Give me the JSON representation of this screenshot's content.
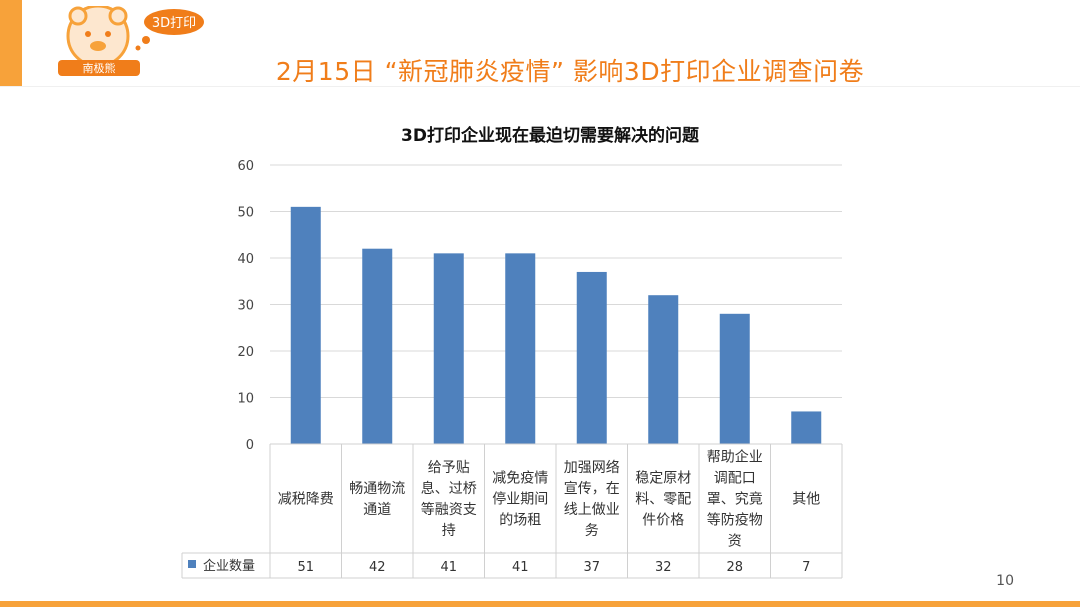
{
  "header": {
    "title": "2月15日 “新冠肺炎疫情” 影响3D打印企业调查问卷",
    "logo_bear_text": "南极熊",
    "logo_bubble_text": "3D打印"
  },
  "page_number": "10",
  "colors": {
    "accent": "#f7a23a",
    "title": "#f07d1a",
    "bar": "#4f81bd"
  },
  "chart_data": {
    "type": "bar",
    "title": "3D打印企业现在最迫切需要解决的问题",
    "categories": [
      [
        "减税降费"
      ],
      [
        "畅通物流",
        "通道"
      ],
      [
        "给予贴",
        "息、过桥",
        "等融资支",
        "持"
      ],
      [
        "减免疫情",
        "停业期间",
        "的场租"
      ],
      [
        "加强网络",
        "宣传，在",
        "线上做业",
        "务"
      ],
      [
        "稳定原材",
        "料、零配",
        "件价格"
      ],
      [
        "帮助企业",
        "调配口",
        "罩、究竟",
        "等防疫物",
        "资"
      ],
      [
        "其他"
      ]
    ],
    "series": [
      {
        "name": "企业数量",
        "values": [
          51,
          42,
          41,
          41,
          37,
          32,
          28,
          7
        ]
      }
    ],
    "ylim": [
      0,
      60
    ],
    "yticks": [
      0,
      10,
      20,
      30,
      40,
      50,
      60
    ],
    "grid": true,
    "legend_position": "data-table"
  }
}
